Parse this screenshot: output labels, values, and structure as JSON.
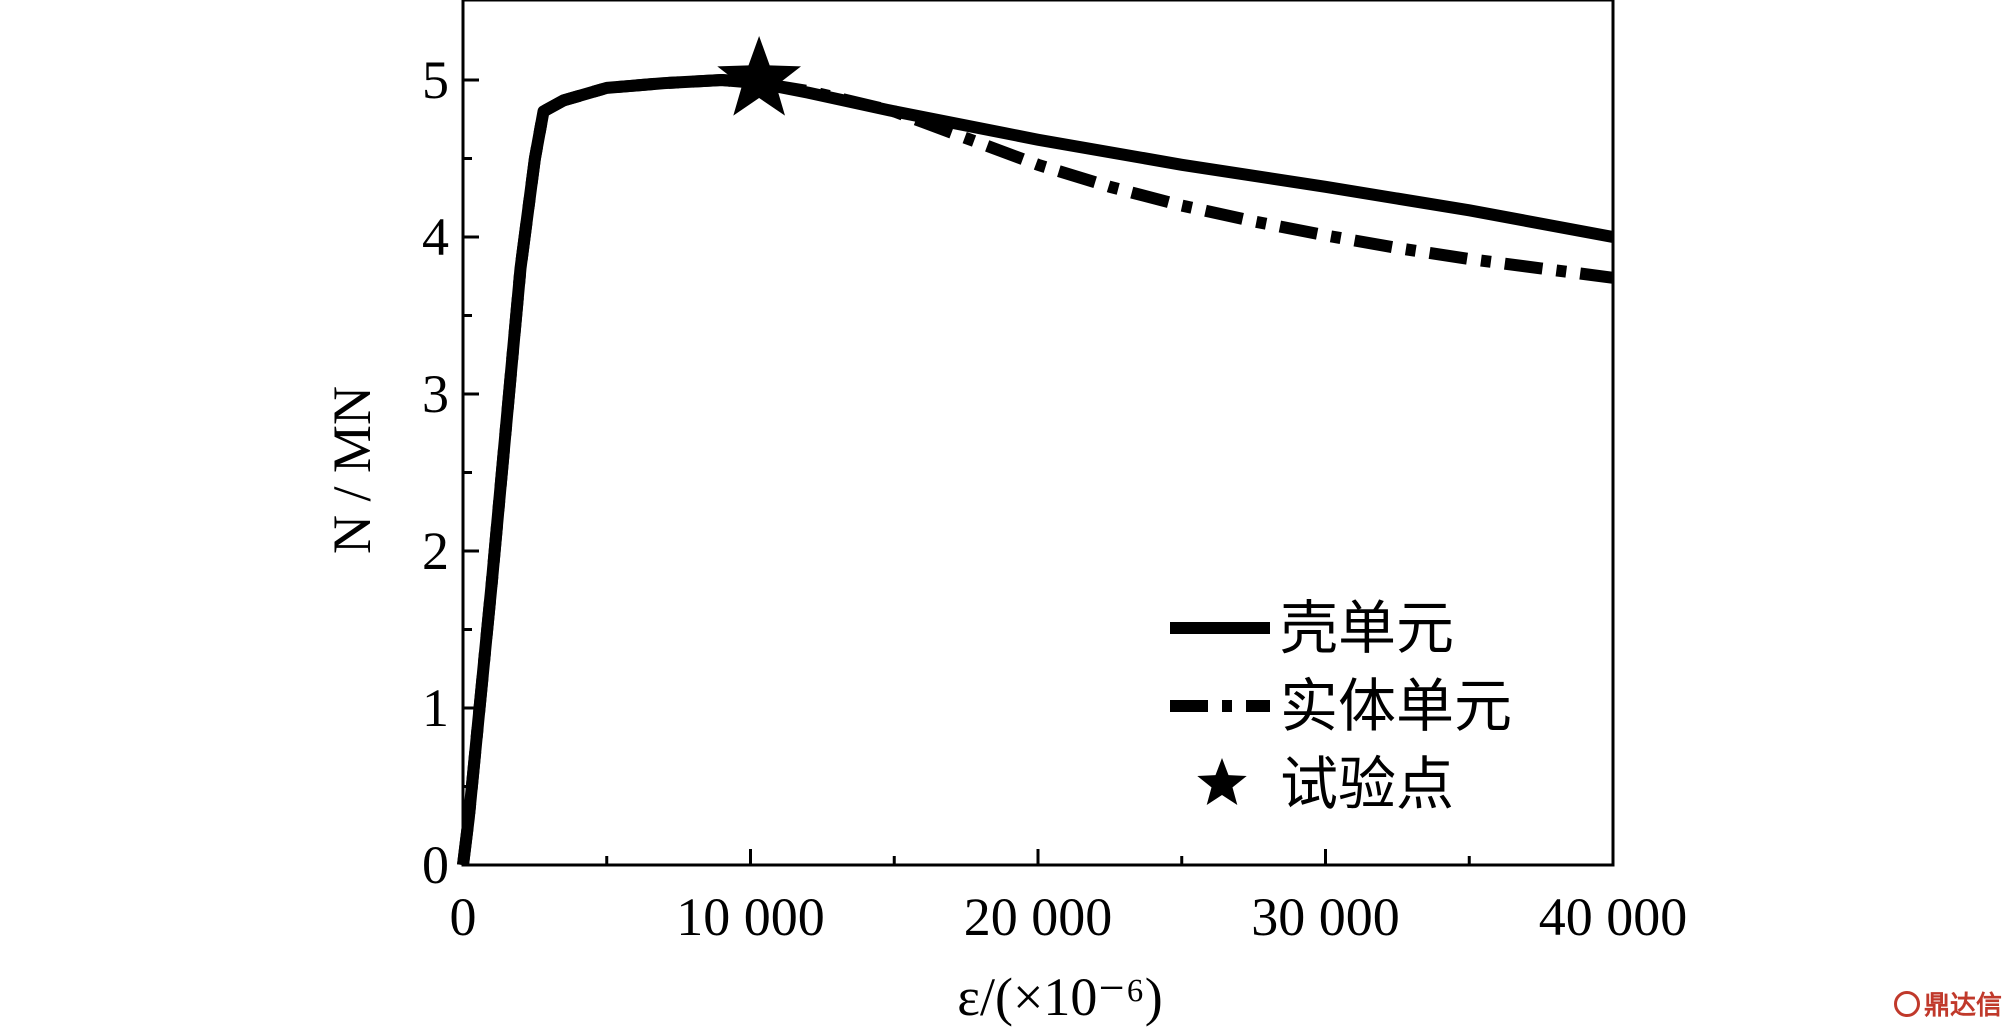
{
  "chart_data": {
    "type": "line",
    "xlabel": "ε/(×10⁻⁶)",
    "ylabel": "N / MN",
    "xlim": [
      0,
      40000
    ],
    "ylim": [
      0,
      5.5
    ],
    "x_ticks": [
      0,
      10000,
      20000,
      30000,
      40000
    ],
    "x_tick_labels": [
      "0",
      "10 000",
      "20 000",
      "30 000",
      "40 000"
    ],
    "y_ticks": [
      0,
      1,
      2,
      3,
      4,
      5
    ],
    "y_tick_labels": [
      "0",
      "1",
      "2",
      "3",
      "4",
      "5"
    ],
    "grid": false,
    "legend_position": "bottom-right",
    "series": [
      {
        "name": "壳单元",
        "style": "solid",
        "color": "#000000",
        "x": [
          0,
          200,
          1000,
          2000,
          2500,
          2800,
          3500,
          5000,
          7000,
          9000,
          10300,
          12000,
          15000,
          20000,
          25000,
          30000,
          35000,
          40000
        ],
        "y": [
          0,
          0.3,
          1.8,
          3.8,
          4.5,
          4.8,
          4.87,
          4.95,
          4.98,
          5.0,
          4.98,
          4.92,
          4.8,
          4.62,
          4.46,
          4.32,
          4.17,
          4.0
        ]
      },
      {
        "name": "实体单元",
        "style": "dash-dot",
        "color": "#000000",
        "x": [
          0,
          200,
          1000,
          2000,
          2500,
          2800,
          3500,
          5000,
          7000,
          9000,
          10300,
          12000,
          15000,
          17500,
          20000,
          22500,
          25000,
          27500,
          30000,
          32500,
          35000,
          37500,
          40000
        ],
        "y": [
          0,
          0.3,
          1.8,
          3.8,
          4.5,
          4.8,
          4.87,
          4.95,
          4.98,
          5.0,
          4.98,
          4.93,
          4.8,
          4.63,
          4.46,
          4.32,
          4.2,
          4.1,
          4.01,
          3.93,
          3.86,
          3.8,
          3.74
        ]
      }
    ],
    "test_point": {
      "name": "试验点",
      "x": 10300,
      "y": 5.0,
      "marker": "star"
    }
  },
  "watermark": {
    "text": "鼎达信"
  }
}
